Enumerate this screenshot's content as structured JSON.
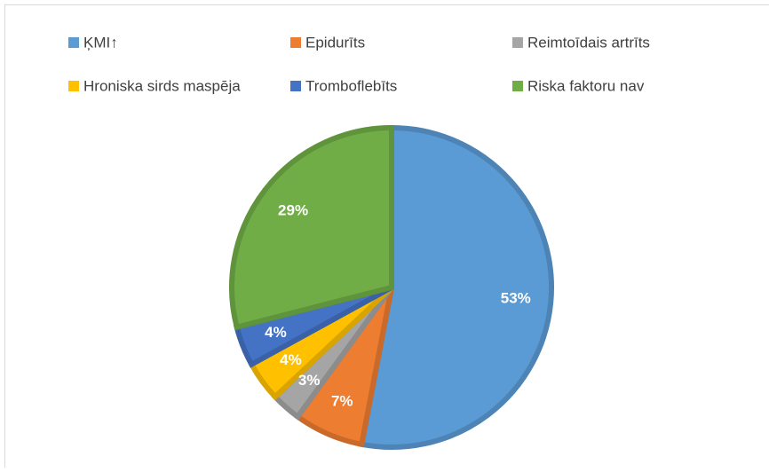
{
  "chart_data": {
    "type": "pie",
    "categories": [
      "ĶMI↑",
      "Epidurīts",
      "Reimtoīdais artrīts",
      "Hroniska sirds maspēja",
      "Tromboflebīts",
      "Riska faktoru nav"
    ],
    "values": [
      53,
      7,
      3,
      4,
      4,
      29
    ],
    "value_labels": [
      "53%",
      "7%",
      "3%",
      "4%",
      "4%",
      "29%"
    ],
    "colors": [
      "#5b9bd5",
      "#ed7d31",
      "#a5a5a5",
      "#ffc000",
      "#4472c4",
      "#70ad47"
    ],
    "legend": "top"
  }
}
